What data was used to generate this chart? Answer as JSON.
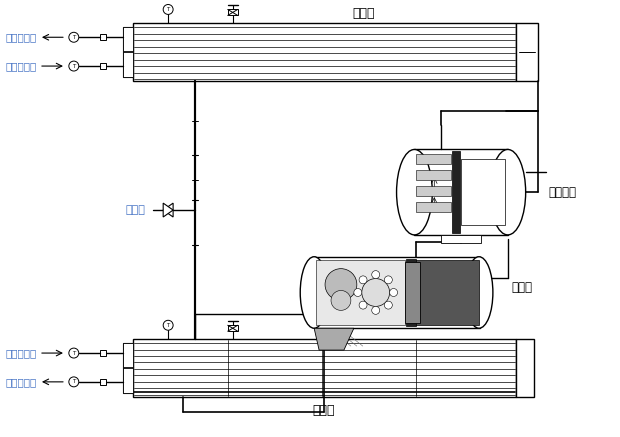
{
  "bg_color": "#ffffff",
  "line_color": "#000000",
  "label_color_cn": "#4472c4",
  "labels": {
    "condenser": "冷凝器",
    "evaporator": "蒸發器",
    "compressor": "压缩机",
    "oil_separator": "油分离器",
    "expansion_valve": "节流阀",
    "cooling_water_out": "冷却水出水",
    "cooling_water_in": "冷却水进水",
    "chilled_water_in": "冷冻水进水",
    "chilled_water_out": "冷冻水出水"
  }
}
